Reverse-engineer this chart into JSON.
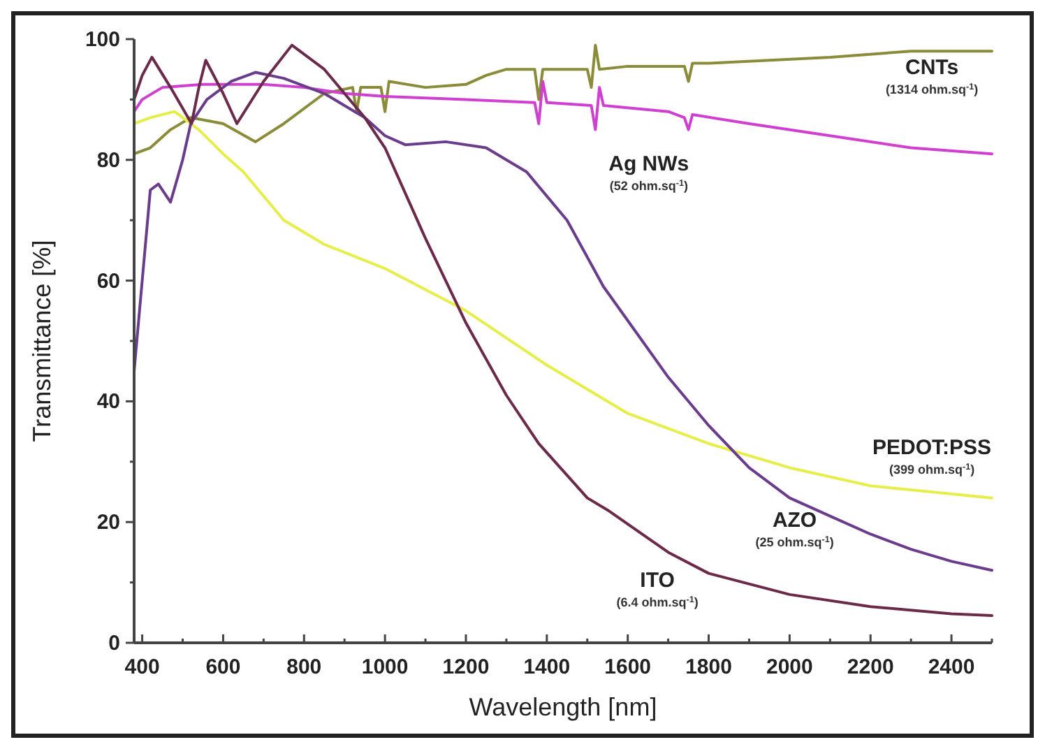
{
  "chart_data": {
    "type": "line",
    "xlabel": "Wavelength  [nm]",
    "ylabel": "Transmittance  [%]",
    "xlim": [
      380,
      2500
    ],
    "ylim": [
      0,
      100
    ],
    "xticks": [
      400,
      {
        "value": 500,
        "label": null
      },
      600,
      {
        "value": 700,
        "label": null
      },
      800,
      {
        "value": 900,
        "label": null
      },
      1000,
      {
        "value": 1100,
        "label": null
      },
      1200,
      {
        "value": 1300,
        "label": null
      },
      1400,
      {
        "value": 1500,
        "label": null
      },
      1600,
      {
        "value": 1700,
        "label": null
      },
      1800,
      {
        "value": 1900,
        "label": null
      },
      2000,
      {
        "value": 2100,
        "label": null
      },
      2200,
      {
        "value": 2300,
        "label": null
      },
      2400,
      {
        "value": 2500,
        "label": null
      }
    ],
    "yticks": [
      0,
      {
        "value": 10,
        "label": null
      },
      20,
      {
        "value": 30,
        "label": null
      },
      40,
      {
        "value": 50,
        "label": null
      },
      60,
      {
        "value": 70,
        "label": null
      },
      80,
      {
        "value": 90,
        "label": null
      },
      100
    ],
    "grid": false,
    "marker": "none",
    "line_style": "solid",
    "series": [
      {
        "name": "CNTs",
        "color": "#8a8c3a",
        "x": [
          380,
          420,
          470,
          520,
          600,
          680,
          750,
          850,
          920,
          930,
          940,
          990,
          1000,
          1010,
          1100,
          1200,
          1250,
          1300,
          1370,
          1380,
          1390,
          1500,
          1510,
          1520,
          1530,
          1600,
          1740,
          1750,
          1760,
          1800,
          1950,
          2100,
          2300,
          2500
        ],
        "values": [
          81,
          82,
          85,
          87,
          86,
          83,
          86,
          91,
          92,
          88,
          92,
          92,
          88,
          93,
          92,
          92.5,
          94,
          95,
          95,
          90,
          95,
          95,
          92,
          99,
          95,
          95.5,
          95.5,
          93,
          96,
          96,
          96.5,
          97,
          98,
          98
        ]
      },
      {
        "name": "Ag NWs",
        "color": "#d040d0",
        "x": [
          380,
          400,
          450,
          550,
          700,
          800,
          900,
          1000,
          1200,
          1370,
          1380,
          1390,
          1400,
          1510,
          1520,
          1530,
          1540,
          1700,
          1740,
          1750,
          1760,
          1900,
          2100,
          2300,
          2500
        ],
        "values": [
          88,
          90,
          92,
          92.5,
          92.5,
          92,
          91,
          90.5,
          90,
          89.5,
          86,
          93,
          89.5,
          89,
          85,
          92,
          89,
          88,
          87,
          85,
          87.5,
          86,
          84,
          82,
          81
        ]
      },
      {
        "name": "PEDOT:PSS",
        "color": "#e6ee4a",
        "x": [
          380,
          420,
          480,
          540,
          600,
          650,
          750,
          850,
          1000,
          1200,
          1400,
          1600,
          1800,
          2000,
          2200,
          2350,
          2500
        ],
        "values": [
          86,
          87,
          88,
          85,
          81,
          78,
          70,
          66,
          62,
          55,
          46,
          38,
          33,
          29,
          26,
          25,
          24
        ]
      },
      {
        "name": "AZO",
        "color": "#6a3c8c",
        "x": [
          380,
          400,
          420,
          440,
          470,
          500,
          520,
          560,
          620,
          680,
          750,
          850,
          950,
          1000,
          1050,
          1150,
          1250,
          1350,
          1450,
          1540,
          1700,
          1800,
          1900,
          2000,
          2100,
          2200,
          2300,
          2400,
          2500
        ],
        "values": [
          45,
          60,
          75,
          76,
          73,
          80,
          86,
          90,
          93,
          94.5,
          93.5,
          91,
          87,
          84,
          82.5,
          83,
          82,
          78,
          70,
          59,
          44,
          36,
          29,
          24,
          21,
          18,
          15.5,
          13.5,
          12
        ]
      },
      {
        "name": "ITO",
        "color": "#6b2a4a",
        "x": [
          380,
          400,
          424,
          470,
          522,
          540,
          557,
          600,
          634,
          700,
          770,
          850,
          900,
          950,
          1000,
          1100,
          1200,
          1300,
          1380,
          1500,
          1550,
          1700,
          1800,
          2000,
          2200,
          2400,
          2500
        ],
        "values": [
          90,
          94,
          97,
          92,
          86,
          92,
          96.5,
          91,
          86,
          93,
          99,
          95,
          91,
          87,
          82,
          67,
          53,
          41,
          33,
          24,
          22,
          15,
          11.5,
          8,
          6,
          4.8,
          4.5
        ]
      }
    ],
    "annotations": [
      "(1314 ohm.sq$^{-1}$)",
      "(52 ohm.sq$^{-1}$)",
      "(399 ohm.sq$^{-1}$)",
      "(25 ohm.sq$^{-1}$)",
      "(6.4 ohm.sq$^{-1}$)"
    ]
  }
}
